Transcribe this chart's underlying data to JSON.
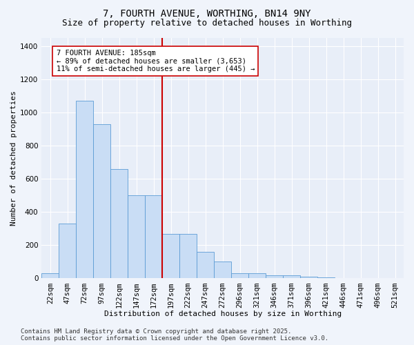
{
  "title": "7, FOURTH AVENUE, WORTHING, BN14 9NY",
  "subtitle": "Size of property relative to detached houses in Worthing",
  "xlabel": "Distribution of detached houses by size in Worthing",
  "ylabel": "Number of detached properties",
  "categories": [
    "22sqm",
    "47sqm",
    "72sqm",
    "97sqm",
    "122sqm",
    "147sqm",
    "172sqm",
    "197sqm",
    "222sqm",
    "247sqm",
    "272sqm",
    "296sqm",
    "321sqm",
    "346sqm",
    "371sqm",
    "396sqm",
    "421sqm",
    "446sqm",
    "471sqm",
    "496sqm",
    "521sqm"
  ],
  "values": [
    30,
    330,
    1070,
    930,
    660,
    500,
    500,
    270,
    270,
    160,
    100,
    30,
    30,
    20,
    20,
    10,
    5,
    0,
    0,
    0,
    0
  ],
  "bar_color": "#c9ddf5",
  "bar_edge_color": "#5b9bd5",
  "vline_color": "#cc0000",
  "annotation_text": "7 FOURTH AVENUE: 185sqm\n← 89% of detached houses are smaller (3,653)\n11% of semi-detached houses are larger (445) →",
  "annotation_box_color": "#ffffff",
  "annotation_edge_color": "#cc0000",
  "footer": "Contains HM Land Registry data © Crown copyright and database right 2025.\nContains public sector information licensed under the Open Government Licence v3.0.",
  "ylim": [
    0,
    1450
  ],
  "fig_background_color": "#f0f4fb",
  "ax_background_color": "#e8eef8",
  "grid_color": "#ffffff",
  "title_fontsize": 10,
  "subtitle_fontsize": 9,
  "axis_label_fontsize": 8,
  "tick_fontsize": 7.5,
  "footer_fontsize": 6.5,
  "annotation_fontsize": 7.5
}
